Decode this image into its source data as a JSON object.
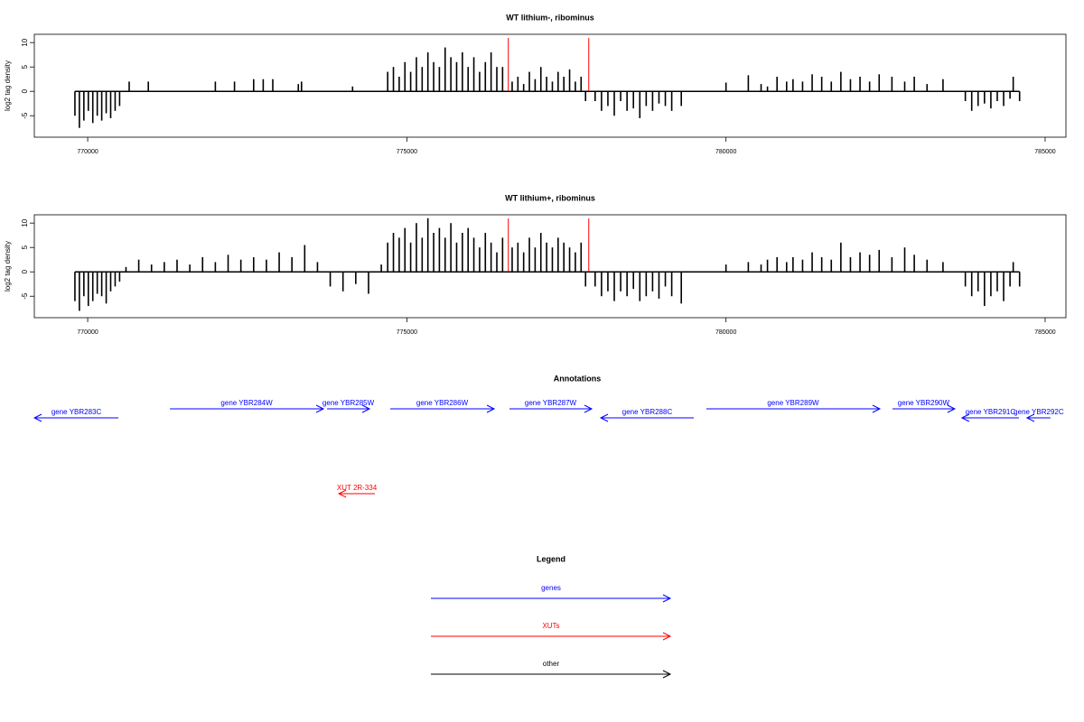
{
  "chart_data": [
    {
      "type": "spike",
      "title": "WT lithium-, ribominus",
      "ylabel": "log2 tag density",
      "color": "#000000",
      "marker_color": "#ff0000",
      "xlim": [
        769164,
        785326
      ],
      "ylim": [
        -9.4,
        11.7
      ],
      "xticks": [
        770000,
        775000,
        780000,
        785000
      ],
      "yticks": [
        -5,
        0,
        5,
        10
      ],
      "markers": [
        776590,
        777850
      ],
      "x": [
        769800,
        769870,
        769940,
        770010,
        770080,
        770150,
        770220,
        770290,
        770360,
        770430,
        770500,
        770650,
        770950,
        772000,
        772300,
        772600,
        772750,
        772900,
        773300,
        773350,
        774150,
        774700,
        774790,
        774880,
        774970,
        775060,
        775150,
        775240,
        775330,
        775420,
        775510,
        775600,
        775690,
        775780,
        775870,
        775960,
        776050,
        776140,
        776230,
        776320,
        776410,
        776500,
        776650,
        776740,
        776830,
        776920,
        777010,
        777100,
        777190,
        777280,
        777370,
        777460,
        777550,
        777640,
        777730,
        777800,
        777950,
        778050,
        778150,
        778250,
        778350,
        778450,
        778550,
        778650,
        778750,
        778850,
        778950,
        779050,
        779150,
        779300,
        780000,
        780350,
        780550,
        780650,
        780800,
        780950,
        781050,
        781200,
        781350,
        781500,
        781650,
        781800,
        781950,
        782100,
        782250,
        782400,
        782600,
        782800,
        782950,
        783150,
        783400,
        783750,
        783850,
        783950,
        784050,
        784150,
        784250,
        784350,
        784450,
        784500,
        784600
      ],
      "values": [
        -5,
        -7.5,
        -6,
        -4,
        -6.5,
        -5,
        -6,
        -4.5,
        -5.5,
        -4,
        -3,
        2,
        2,
        2,
        2,
        2.5,
        2.5,
        2.5,
        1.5,
        2,
        1,
        4,
        5,
        3,
        6,
        4,
        7,
        5,
        8,
        6,
        5,
        9,
        7,
        6,
        8,
        5,
        7,
        4,
        6,
        8,
        5,
        5,
        2,
        3,
        1.5,
        4,
        2.5,
        5,
        3,
        2,
        4,
        3,
        4.5,
        2,
        3,
        -2,
        -2,
        -4,
        -3,
        -5,
        -2,
        -4,
        -3.5,
        -5.5,
        -3,
        -4,
        -2.5,
        -3,
        -4,
        -3,
        1.8,
        3.3,
        1.5,
        1,
        3,
        2,
        2.5,
        2,
        3.5,
        3,
        2,
        4,
        2.5,
        3,
        2,
        3.5,
        3,
        2,
        3,
        1.5,
        2.5,
        -2,
        -4,
        -3,
        -2.5,
        -3.5,
        -2,
        -3,
        -1.5,
        3,
        -2
      ]
    },
    {
      "type": "spike",
      "title": "WT lithium+, ribominus",
      "ylabel": "log2 tag density",
      "color": "#000000",
      "marker_color": "#ff0000",
      "xlim": [
        769164,
        785326
      ],
      "ylim": [
        -9.4,
        11.7
      ],
      "xticks": [
        770000,
        775000,
        780000,
        785000
      ],
      "yticks": [
        -5,
        0,
        5,
        10
      ],
      "markers": [
        776590,
        777850
      ],
      "x": [
        769800,
        769870,
        769940,
        770010,
        770080,
        770150,
        770220,
        770290,
        770360,
        770430,
        770500,
        770600,
        770800,
        771000,
        771200,
        771400,
        771600,
        771800,
        772000,
        772200,
        772400,
        772600,
        772800,
        773000,
        773200,
        773400,
        773600,
        773800,
        774000,
        774200,
        774400,
        774600,
        774700,
        774790,
        774880,
        774970,
        775060,
        775150,
        775240,
        775330,
        775420,
        775510,
        775600,
        775690,
        775780,
        775870,
        775960,
        776050,
        776140,
        776230,
        776320,
        776410,
        776500,
        776650,
        776740,
        776830,
        776920,
        777010,
        777100,
        777190,
        777280,
        777370,
        777460,
        777550,
        777640,
        777730,
        777800,
        777950,
        778050,
        778150,
        778250,
        778350,
        778450,
        778550,
        778650,
        778750,
        778850,
        778950,
        779050,
        779150,
        779300,
        780000,
        780350,
        780550,
        780650,
        780800,
        780950,
        781050,
        781200,
        781350,
        781500,
        781650,
        781800,
        781950,
        782100,
        782250,
        782400,
        782600,
        782800,
        782950,
        783150,
        783400,
        783750,
        783850,
        783950,
        784050,
        784150,
        784250,
        784350,
        784450,
        784500,
        784600
      ],
      "values": [
        -6,
        -8,
        -5,
        -7,
        -6,
        -4.5,
        -5,
        -6.5,
        -4,
        -3,
        -2,
        1,
        2.5,
        1.5,
        2,
        2.5,
        1.5,
        3,
        2,
        3.5,
        2.5,
        3,
        2.5,
        4,
        3,
        5.5,
        2,
        -3,
        -4,
        -2.5,
        -4.5,
        1.5,
        6,
        8,
        7,
        9,
        6,
        10,
        7,
        11,
        8,
        9,
        7,
        10,
        6,
        8,
        9,
        7,
        5,
        8,
        6,
        4,
        7,
        5,
        6,
        4,
        7,
        5,
        8,
        6,
        5,
        7,
        6,
        5,
        4,
        6,
        -3,
        -3,
        -5,
        -4,
        -6,
        -4,
        -5,
        -3.5,
        -6,
        -5,
        -4,
        -5.5,
        -3,
        -5,
        -6.5,
        1.5,
        2,
        1.5,
        2.5,
        3,
        2,
        3,
        2.5,
        4,
        3,
        2.5,
        6,
        3,
        4,
        3.5,
        4.5,
        3,
        5,
        3.5,
        2.5,
        2,
        -3,
        -5,
        -4,
        -7,
        -5,
        -4,
        -6,
        -3,
        2,
        -3
      ]
    },
    {
      "type": "annotation",
      "title": "Annotations",
      "gene_color": "#0000ff",
      "xut_color": "#ff0000",
      "genes": [
        {
          "name": "gene YBR283C",
          "start": 769165,
          "end": 770481,
          "strand": "-"
        },
        {
          "name": "gene YBR284W",
          "start": 771288,
          "end": 773693,
          "strand": "+"
        },
        {
          "name": "gene YBR285W",
          "start": 773750,
          "end": 774415,
          "strand": "+"
        },
        {
          "name": "gene YBR286W",
          "start": 774740,
          "end": 776368,
          "strand": "+"
        },
        {
          "name": "gene YBR287W",
          "start": 776608,
          "end": 777896,
          "strand": "+"
        },
        {
          "name": "gene YBR288C",
          "start": 778038,
          "end": 779495,
          "strand": "-"
        },
        {
          "name": "gene YBR289W",
          "start": 779693,
          "end": 782410,
          "strand": "+"
        },
        {
          "name": "gene YBR290W",
          "start": 782608,
          "end": 783584,
          "strand": "+"
        },
        {
          "name": "gene YBR291C",
          "start": 783697,
          "end": 784589,
          "strand": "-"
        },
        {
          "name": "gene YBR292C",
          "start": 784716,
          "end": 785084,
          "strand": "-"
        }
      ],
      "xuts": [
        {
          "name": "XUT 2R-334",
          "start": 773934,
          "end": 774500,
          "strand": "-"
        }
      ]
    },
    {
      "type": "legend",
      "title": "Legend",
      "items": [
        {
          "name": "genes",
          "color": "#0000ff"
        },
        {
          "name": "XUTs",
          "color": "#ff0000"
        },
        {
          "name": "other",
          "color": "#000000"
        }
      ]
    }
  ]
}
